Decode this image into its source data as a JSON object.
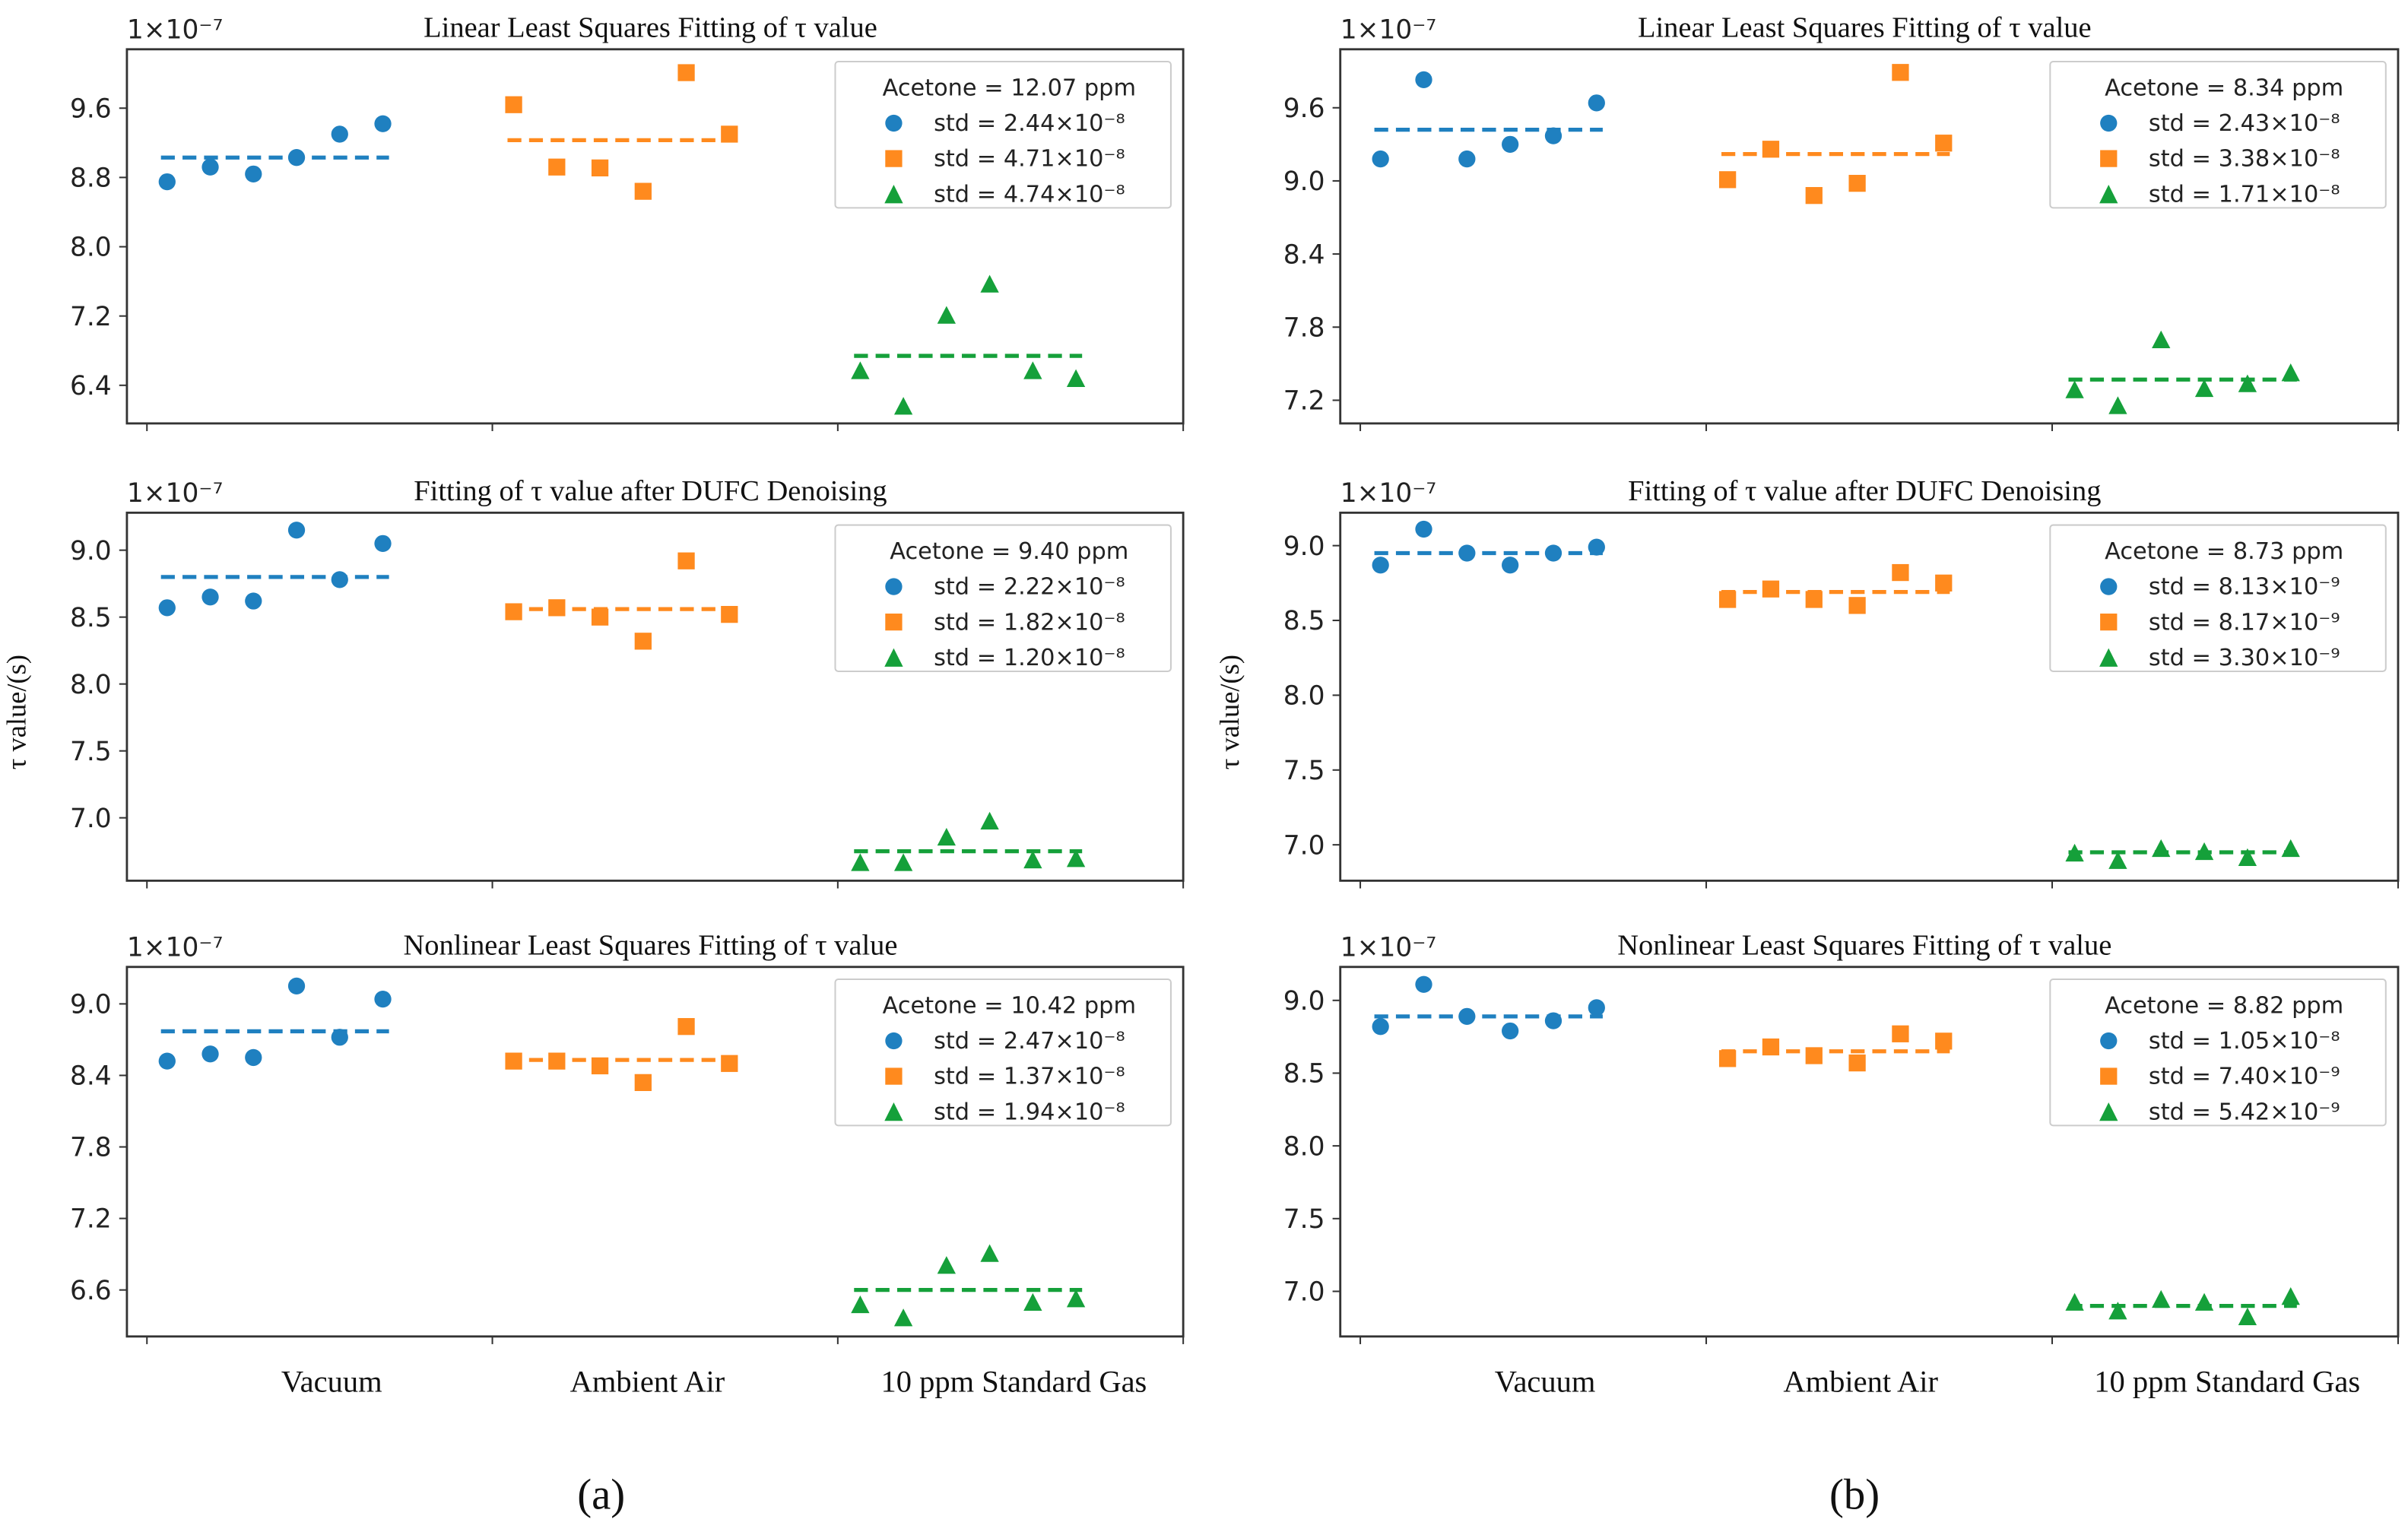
{
  "figure": {
    "captions": [
      "(a)",
      "(b)"
    ],
    "offset_text": "1×10⁻⁷",
    "ylabel": "τ value/(s)",
    "categories": [
      "Vacuum",
      "Ambient Air",
      "10 ppm Standard Gas"
    ],
    "colors": {
      "vacuum": "#1f80c0",
      "ambient": "#ff8a1e",
      "gas": "#15a03a"
    }
  },
  "chart_data": [
    {
      "type": "scatter",
      "panel": "a-top",
      "title": "Linear Least Squares Fitting of τ value",
      "ylim": [
        5.96,
        10.28
      ],
      "yticks": [
        6.4,
        7.2,
        8.0,
        8.8,
        9.6
      ],
      "ytick_labels": [
        "6.4",
        "7.2",
        "8.0",
        "8.8",
        "9.6"
      ],
      "series": [
        {
          "name": "Vacuum",
          "marker": "circle",
          "values": [
            8.75,
            8.92,
            8.84,
            9.03,
            9.3,
            9.42
          ],
          "mean": 9.03
        },
        {
          "name": "Ambient Air",
          "marker": "square",
          "values": [
            9.64,
            8.92,
            8.91,
            8.64,
            10.01,
            9.3
          ],
          "mean": 9.23
        },
        {
          "name": "10 ppm Standard Gas",
          "marker": "triangle",
          "values": [
            6.56,
            6.15,
            7.2,
            7.56,
            6.56,
            6.47
          ],
          "mean": 6.74
        }
      ],
      "legend": {
        "title": "Acetone = 12.07 ppm",
        "entries": [
          "std = 2.44×10⁻⁸",
          "std = 4.71×10⁻⁸",
          "std = 4.74×10⁻⁸"
        ],
        "placement": "top-right"
      }
    },
    {
      "type": "scatter",
      "panel": "a-middle",
      "title": "Fitting of τ value after DUFC Denoising",
      "ylim": [
        6.53,
        9.28
      ],
      "yticks": [
        7.0,
        7.5,
        8.0,
        8.5,
        9.0
      ],
      "ytick_labels": [
        "7.0",
        "7.5",
        "8.0",
        "8.5",
        "9.0"
      ],
      "series": [
        {
          "name": "Vacuum",
          "marker": "circle",
          "values": [
            8.57,
            8.65,
            8.62,
            9.15,
            8.78,
            9.05
          ],
          "mean": 8.8
        },
        {
          "name": "Ambient Air",
          "marker": "square",
          "values": [
            8.54,
            8.57,
            8.5,
            8.32,
            8.92,
            8.52
          ],
          "mean": 8.56
        },
        {
          "name": "10 ppm Standard Gas",
          "marker": "triangle",
          "values": [
            6.66,
            6.66,
            6.85,
            6.97,
            6.68,
            6.69
          ],
          "mean": 6.75
        }
      ],
      "legend": {
        "title": "Acetone = 9.40 ppm",
        "entries": [
          "std = 2.22×10⁻⁸",
          "std = 1.82×10⁻⁸",
          "std = 1.20×10⁻⁸"
        ],
        "placement": "top-right"
      }
    },
    {
      "type": "scatter",
      "panel": "a-bottom",
      "title": "Nonlinear Least Squares Fitting of τ value",
      "ylim": [
        6.21,
        9.31
      ],
      "yticks": [
        6.6,
        7.2,
        7.8,
        8.4,
        9.0
      ],
      "ytick_labels": [
        "6.6",
        "7.2",
        "7.8",
        "8.4",
        "9.0"
      ],
      "series": [
        {
          "name": "Vacuum",
          "marker": "circle",
          "values": [
            8.52,
            8.58,
            8.55,
            9.15,
            8.72,
            9.04
          ],
          "mean": 8.77
        },
        {
          "name": "Ambient Air",
          "marker": "square",
          "values": [
            8.52,
            8.52,
            8.48,
            8.34,
            8.81,
            8.5
          ],
          "mean": 8.53
        },
        {
          "name": "10 ppm Standard Gas",
          "marker": "triangle",
          "values": [
            6.47,
            6.36,
            6.8,
            6.9,
            6.49,
            6.52
          ],
          "mean": 6.6
        }
      ],
      "legend": {
        "title": "Acetone = 10.42 ppm",
        "entries": [
          "std = 2.47×10⁻⁸",
          "std = 1.37×10⁻⁸",
          "std = 1.94×10⁻⁸"
        ],
        "placement": "top-right"
      }
    },
    {
      "type": "scatter",
      "panel": "b-top",
      "title": "Linear Least Squares Fitting of τ value",
      "ylim": [
        7.01,
        10.08
      ],
      "yticks": [
        7.2,
        7.8,
        8.4,
        9.0,
        9.6
      ],
      "ytick_labels": [
        "7.2",
        "7.8",
        "8.4",
        "9.0",
        "9.6"
      ],
      "series": [
        {
          "name": "Vacuum",
          "marker": "circle",
          "values": [
            9.18,
            9.83,
            9.18,
            9.3,
            9.37,
            9.64
          ],
          "mean": 9.42
        },
        {
          "name": "Ambient Air",
          "marker": "square",
          "values": [
            9.01,
            9.26,
            8.88,
            8.98,
            9.89,
            9.31
          ],
          "mean": 9.22
        },
        {
          "name": "10 ppm Standard Gas",
          "marker": "triangle",
          "values": [
            7.28,
            7.15,
            7.69,
            7.29,
            7.33,
            7.42
          ],
          "mean": 7.37
        }
      ],
      "legend": {
        "title": "Acetone = 8.34 ppm",
        "entries": [
          "std = 2.43×10⁻⁸",
          "std = 3.38×10⁻⁸",
          "std = 1.71×10⁻⁸"
        ],
        "placement": "top-right"
      }
    },
    {
      "type": "scatter",
      "panel": "b-middle",
      "title": "Fitting of τ value after DUFC Denoising",
      "ylim": [
        6.76,
        9.22
      ],
      "yticks": [
        7.0,
        7.5,
        8.0,
        8.5,
        9.0
      ],
      "ytick_labels": [
        "7.0",
        "7.5",
        "8.0",
        "8.5",
        "9.0"
      ],
      "series": [
        {
          "name": "Vacuum",
          "marker": "circle",
          "values": [
            8.87,
            9.11,
            8.95,
            8.87,
            8.95,
            8.99
          ],
          "mean": 8.95
        },
        {
          "name": "Ambient Air",
          "marker": "square",
          "values": [
            8.64,
            8.71,
            8.64,
            8.6,
            8.82,
            8.75
          ],
          "mean": 8.69
        },
        {
          "name": "10 ppm Standard Gas",
          "marker": "triangle",
          "values": [
            6.94,
            6.89,
            6.97,
            6.95,
            6.91,
            6.97
          ],
          "mean": 6.95
        }
      ],
      "legend": {
        "title": "Acetone = 8.73 ppm",
        "entries": [
          "std = 8.13×10⁻⁹",
          "std = 8.17×10⁻⁹",
          "std = 3.30×10⁻⁹"
        ],
        "placement": "top-right"
      }
    },
    {
      "type": "scatter",
      "panel": "b-bottom",
      "title": "Nonlinear Least Squares Fitting of τ value",
      "ylim": [
        6.69,
        9.23
      ],
      "yticks": [
        7.0,
        7.5,
        8.0,
        8.5,
        9.0
      ],
      "ytick_labels": [
        "7.0",
        "7.5",
        "8.0",
        "8.5",
        "9.0"
      ],
      "series": [
        {
          "name": "Vacuum",
          "marker": "circle",
          "values": [
            8.82,
            9.11,
            8.89,
            8.79,
            8.86,
            8.95
          ],
          "mean": 8.89
        },
        {
          "name": "Ambient Air",
          "marker": "square",
          "values": [
            8.6,
            8.68,
            8.62,
            8.57,
            8.77,
            8.72
          ],
          "mean": 8.65
        },
        {
          "name": "10 ppm Standard Gas",
          "marker": "triangle",
          "values": [
            6.92,
            6.86,
            6.94,
            6.92,
            6.82,
            6.96
          ],
          "mean": 6.9
        }
      ],
      "legend": {
        "title": "Acetone = 8.82 ppm",
        "entries": [
          "std = 1.05×10⁻⁸",
          "std = 7.40×10⁻⁹",
          "std = 5.42×10⁻⁹"
        ],
        "placement": "top-right"
      }
    }
  ]
}
